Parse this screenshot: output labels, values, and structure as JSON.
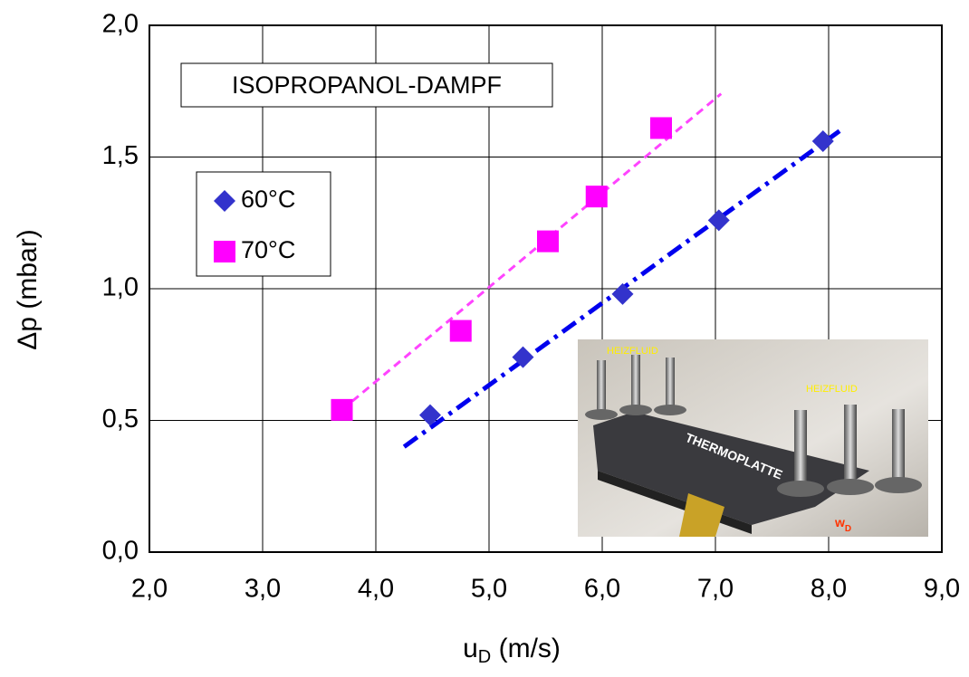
{
  "chart_data": {
    "type": "scatter",
    "x_label": {
      "main": "u",
      "sub": "D",
      "unit": " (m/s)"
    },
    "y_label": "Δp (mbar)",
    "annotation": "ISOPROPANOL-DAMPF",
    "xlim": [
      2.0,
      9.0
    ],
    "ylim": [
      0.0,
      2.0
    ],
    "xticks": [
      {
        "value": 2,
        "label": "2,0"
      },
      {
        "value": 3,
        "label": "3,0"
      },
      {
        "value": 4,
        "label": "4,0"
      },
      {
        "value": 5,
        "label": "5,0"
      },
      {
        "value": 6,
        "label": "6,0"
      },
      {
        "value": 7,
        "label": "7,0"
      },
      {
        "value": 8,
        "label": "8,0"
      },
      {
        "value": 9,
        "label": "9,0"
      }
    ],
    "yticks": [
      {
        "value": 0,
        "label": "0,0"
      },
      {
        "value": 0.5,
        "label": "0,5"
      },
      {
        "value": 1,
        "label": "1,0"
      },
      {
        "value": 1.5,
        "label": "1,5"
      },
      {
        "value": 2,
        "label": "2,0"
      }
    ],
    "grid": true,
    "series": [
      {
        "name": "60°C",
        "color": "#3333cc",
        "marker": "diamond",
        "x": [
          4.48,
          5.3,
          6.18,
          7.03,
          7.95
        ],
        "values": [
          0.52,
          0.74,
          0.98,
          1.26,
          1.56
        ],
        "trend": {
          "x": [
            4.25,
            8.1
          ],
          "y": [
            0.4,
            1.6
          ],
          "dash": "18 7 4 7",
          "color": "#0000ee"
        }
      },
      {
        "name": "70°C",
        "color": "#ff00ff",
        "marker": "square",
        "x": [
          3.7,
          4.75,
          5.52,
          5.95,
          6.52
        ],
        "values": [
          0.54,
          0.84,
          1.18,
          1.35,
          1.61
        ],
        "trend": {
          "x": [
            3.7,
            7.05
          ],
          "y": [
            0.54,
            1.74
          ],
          "dash": "9 6",
          "color": "#ff44ff"
        }
      }
    ],
    "inset": {
      "label_heizfluid_left": "HEIZFLUID",
      "label_heizfluid_right": "HEIZFLUID",
      "label_plate": "THERMOPLATTE",
      "label_w": "w",
      "label_w_sub": "D"
    }
  }
}
